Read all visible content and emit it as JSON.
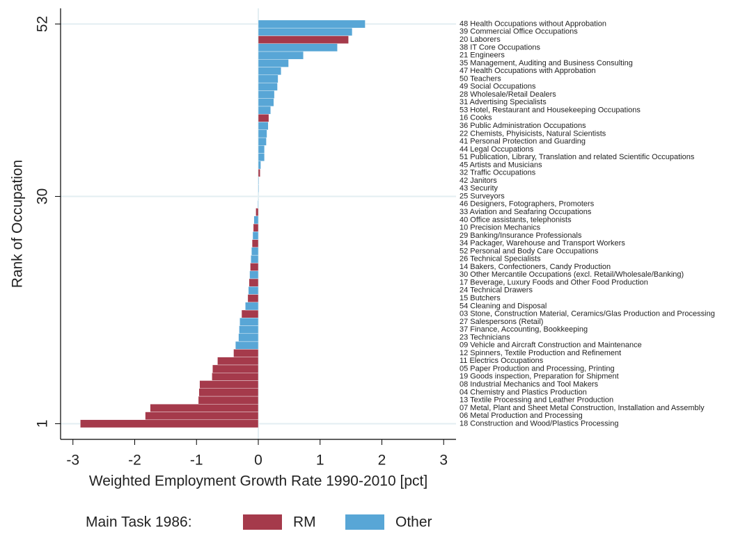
{
  "chart_data": {
    "type": "barh",
    "xlabel": "Weighted Employment Growth Rate 1990-2010 [pct]",
    "ylabel": "Rank of Occupation",
    "legend_title": "Main Task 1986:",
    "y": [
      1,
      2,
      3,
      4,
      5,
      6,
      7,
      8,
      9,
      10,
      11,
      12,
      13,
      14,
      15,
      16,
      17,
      18,
      19,
      20,
      21,
      22,
      23,
      24,
      25,
      26,
      27,
      28,
      29,
      30,
      31,
      32,
      33,
      34,
      35,
      36,
      37,
      38,
      39,
      40,
      41,
      42,
      43,
      44,
      45,
      46,
      47,
      48,
      49,
      50,
      51,
      52
    ],
    "categories": [
      "18 Construction and Wood/Plastics Processing",
      "06 Metal Production and Processing",
      "07 Metal, Plant and Sheet Metal Construction, Installation and Assembly",
      "13 Textile Processing and Leather Production",
      "04 Chemistry and Plastics Production",
      "08 Industrial Mechanics and Tool Makers",
      "19 Goods inspection, Preparation for Shipment",
      "05 Paper Production and Processing, Printing",
      "11 Electrics Occupations",
      "12 Spinners, Textile Production and Refinement",
      "09 Vehicle and Aircraft Construction and Maintenance",
      "23 Technicians",
      "37 Finance, Accounting, Bookkeeping",
      "27 Salespersons (Retail)",
      "03 Stone, Construction Material, Ceramics/Glas Production and Processing",
      "54 Cleaning and Disposal",
      "15 Butchers",
      "24 Technical Drawers",
      "17 Beverage, Luxury Foods and Other Food Production",
      "30 Other Mercantile Occupations (excl. Retail/Wholesale/Banking)",
      "14 Bakers, Confectioners, Candy Production",
      "26 Technical Specialists",
      "52 Personal and Body Care Occupations",
      "34 Packager, Warehouse and Transport Workers",
      "29 Banking/Insurance Professionals",
      "10 Precision Mechanics",
      "40 Office assistants, telephonists",
      "33 Aviation and Seafaring Occupations",
      "46 Designers, Fotographers, Promoters",
      "25 Surveyors",
      "43 Security",
      "42 Janitors",
      "32 Traffic Occupations",
      "45 Artists and Musicians",
      "51 Publication, Library, Translation and related Scientific Occupations",
      "44 Legal Occupations",
      "41 Personal Protection and Guarding",
      "22 Chemists, Phyisicists, Natural Scientists",
      "36 Public Administration Occupations",
      "16 Cooks",
      "53 Hotel, Restaurant and Housekeeping Occupations",
      "31 Advertising Specialists",
      "28 Wholesale/Retail Dealers",
      "49 Social Occupations",
      "50 Teachers",
      "47 Health Occupations with Approbation",
      "35 Management, Auditing and Business Consulting",
      "21 Engineers",
      "38 IT Core Occupations",
      "20 Laborers",
      "39 Commercial Office Occupations",
      "48 Health Occupations without Approbation"
    ],
    "series": [
      {
        "name": "RM",
        "color": "#a53a4b",
        "values": [
          -2.88,
          -1.83,
          -1.75,
          -0.97,
          -0.96,
          -0.95,
          -0.75,
          -0.74,
          -0.66,
          -0.4,
          null,
          null,
          null,
          null,
          -0.27,
          null,
          -0.17,
          null,
          -0.15,
          null,
          -0.13,
          null,
          null,
          -0.1,
          null,
          -0.08,
          null,
          -0.04,
          null,
          null,
          null,
          null,
          0.03,
          null,
          null,
          null,
          null,
          null,
          null,
          0.17,
          null,
          null,
          null,
          null,
          null,
          null,
          null,
          null,
          null,
          1.46,
          null,
          null
        ]
      },
      {
        "name": "Other",
        "color": "#58a6d6",
        "values": [
          null,
          null,
          null,
          null,
          null,
          null,
          null,
          null,
          null,
          null,
          -0.37,
          -0.32,
          -0.31,
          -0.3,
          null,
          -0.21,
          null,
          -0.16,
          null,
          -0.14,
          null,
          -0.12,
          -0.11,
          null,
          -0.09,
          null,
          -0.07,
          null,
          -0.01,
          0.005,
          0.01,
          0.01,
          null,
          0.04,
          0.1,
          0.1,
          0.13,
          0.14,
          0.16,
          null,
          0.2,
          0.25,
          0.26,
          0.31,
          0.32,
          0.37,
          0.49,
          0.73,
          1.28,
          null,
          1.52,
          1.73
        ]
      }
    ],
    "xlim": [
      -3.2,
      3.2
    ],
    "xticks": [
      -3,
      -2,
      -1,
      0,
      1,
      2,
      3
    ],
    "ylim": [
      -1,
      54
    ],
    "yticks": [
      1,
      30,
      52
    ],
    "grid": true
  }
}
